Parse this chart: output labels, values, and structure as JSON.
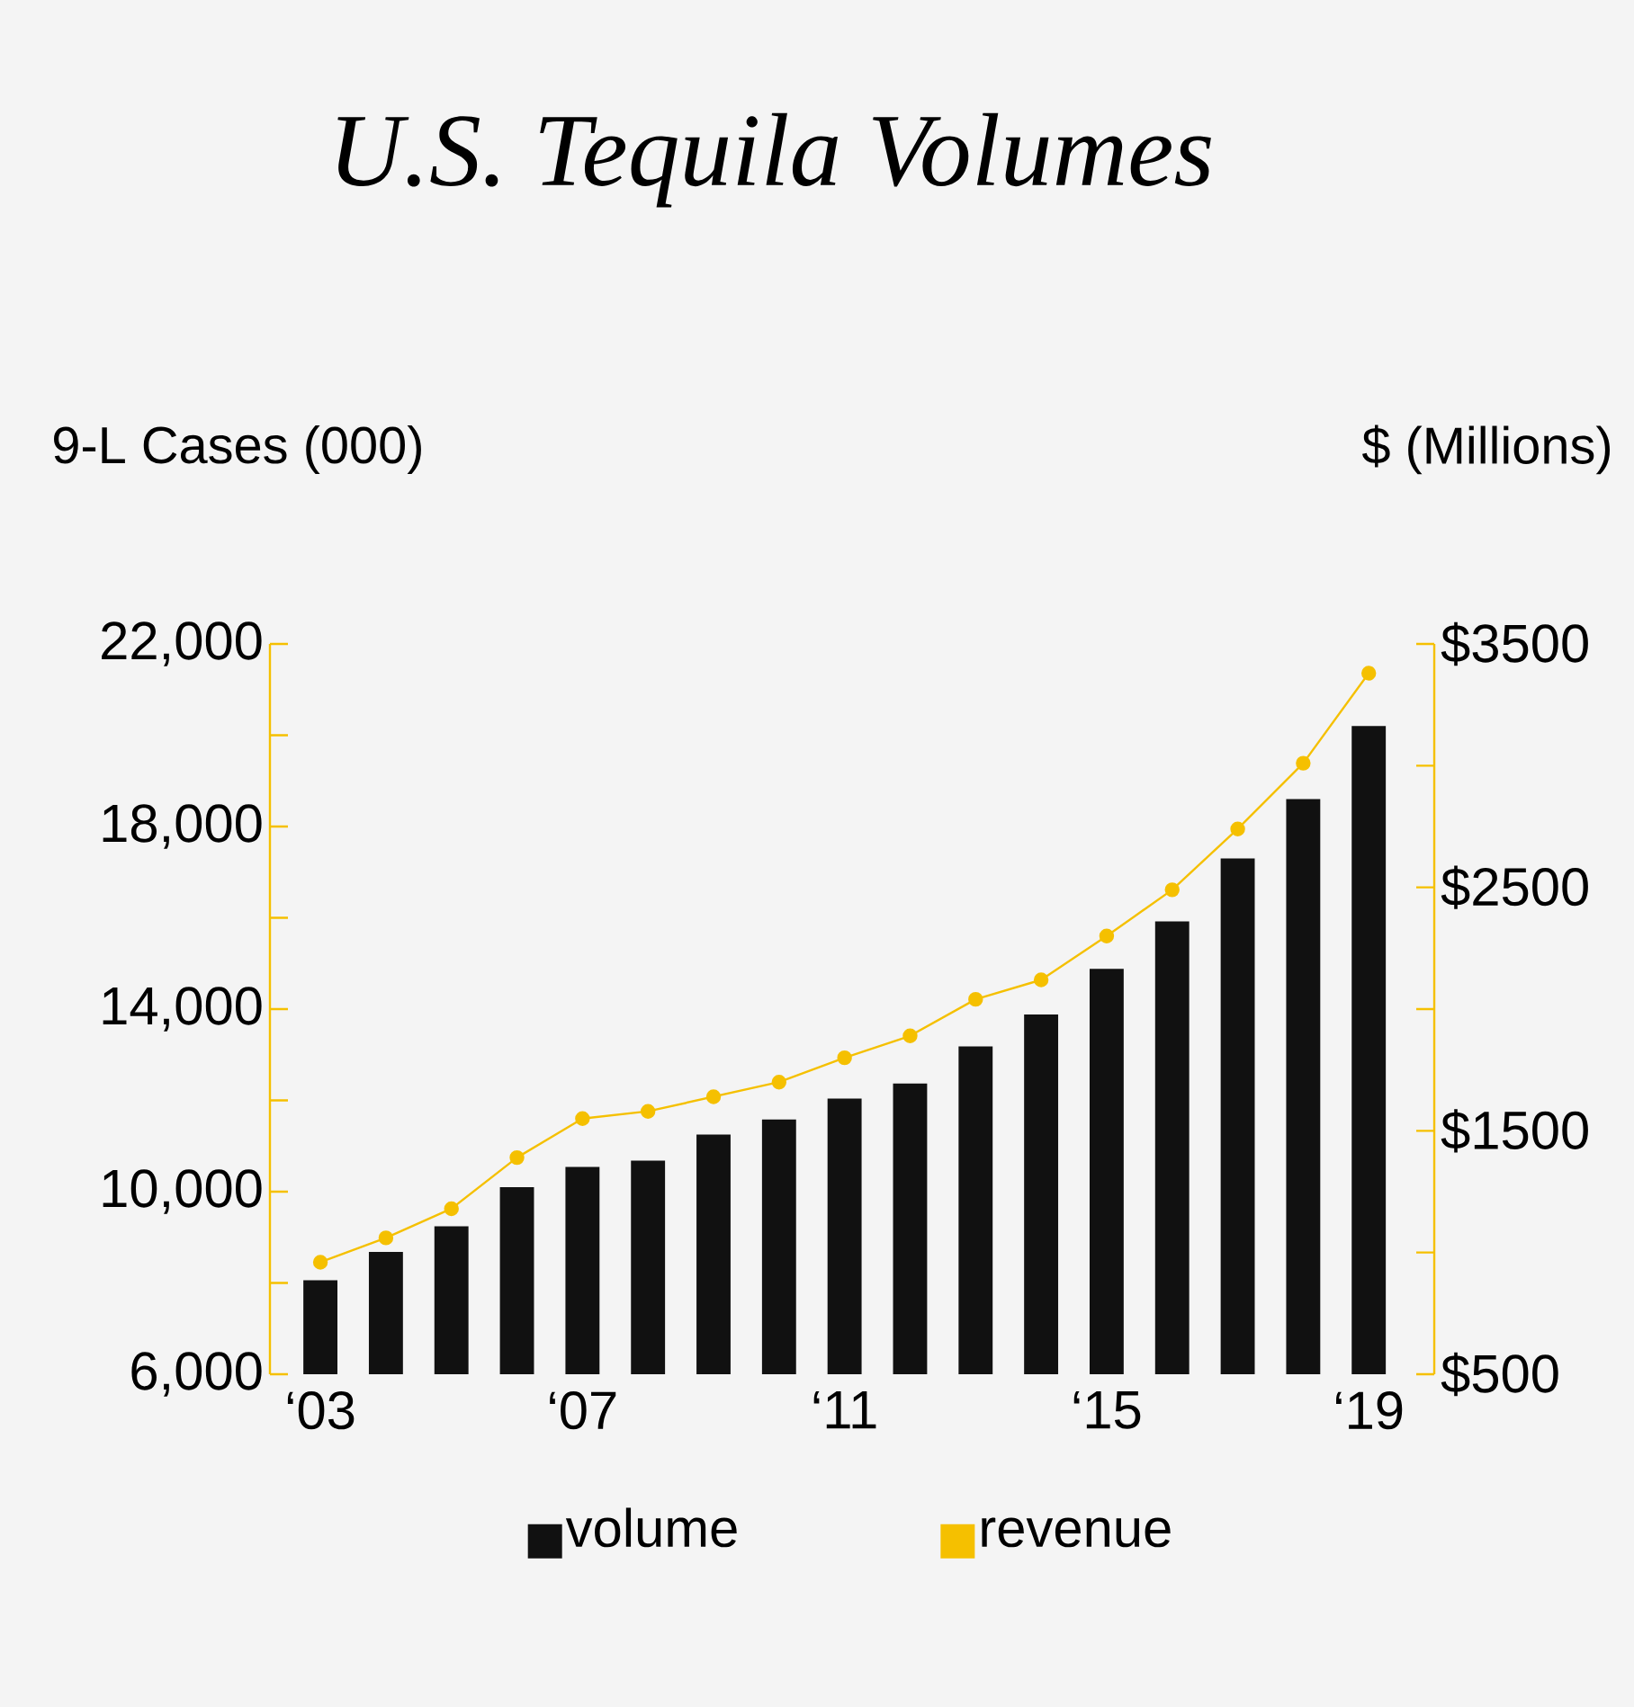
{
  "chart_data": {
    "type": "bar",
    "title": "U.S. Tequila Volumes",
    "ylabel": "9-L Cases (000)",
    "y2label": "$ (Millions)",
    "categories": [
      "‘03",
      null,
      null,
      null,
      "‘07",
      null,
      null,
      null,
      "‘11",
      null,
      null,
      null,
      "‘15",
      null,
      null,
      null,
      "‘19"
    ],
    "series": [
      {
        "name": "volume",
        "color": "#111111",
        "values": [
          8060,
          8680,
          9240,
          10100,
          10540,
          10680,
          11250,
          11580,
          12040,
          12370,
          13180,
          13880,
          14880,
          15920,
          17300,
          18600,
          20200
        ]
      },
      {
        "name": "revenue",
        "type": "line",
        "axis": "y2",
        "color": "#f5c000",
        "values": [
          960,
          1060,
          1180,
          1390,
          1550,
          1580,
          1640,
          1700,
          1800,
          1890,
          2040,
          2120,
          2300,
          2490,
          2740,
          3010,
          3380
        ]
      }
    ],
    "ylim": [
      6000,
      22000
    ],
    "yticks": [
      {
        "value": 6000,
        "label": "6,000"
      },
      {
        "value": 8000,
        "label": null
      },
      {
        "value": 10000,
        "label": "10,000"
      },
      {
        "value": 12000,
        "label": null
      },
      {
        "value": 14000,
        "label": "14,000"
      },
      {
        "value": 16000,
        "label": null
      },
      {
        "value": 18000,
        "label": "18,000"
      },
      {
        "value": 20000,
        "label": null
      },
      {
        "value": 22000,
        "label": "22,000"
      }
    ],
    "y2lim": [
      500,
      3500
    ],
    "y2ticks": [
      {
        "value": 500,
        "label": "$500"
      },
      {
        "value": 1000,
        "label": null
      },
      {
        "value": 1500,
        "label": "$1500"
      },
      {
        "value": 2000,
        "label": null
      },
      {
        "value": 2500,
        "label": "$2500"
      },
      {
        "value": 3000,
        "label": null
      },
      {
        "value": 3500,
        "label": "$3500"
      }
    ],
    "marker": "circle",
    "legend": "bottom"
  }
}
